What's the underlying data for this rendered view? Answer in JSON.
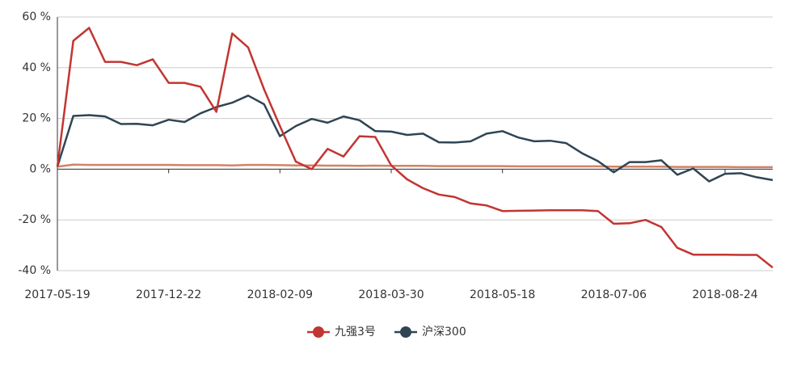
{
  "chart_data": {
    "type": "line",
    "categories": [
      "2017-05-19",
      null,
      null,
      null,
      null,
      null,
      null,
      "2017-12-22",
      null,
      null,
      null,
      null,
      null,
      null,
      "2018-02-09",
      null,
      null,
      null,
      null,
      null,
      null,
      "2018-03-30",
      null,
      null,
      null,
      null,
      null,
      null,
      "2018-05-18",
      null,
      null,
      null,
      null,
      null,
      null,
      "2018-07-06",
      null,
      null,
      null,
      null,
      null,
      null,
      "2018-08-24",
      null,
      null,
      null
    ],
    "series": [
      {
        "name": "九强3号",
        "color": "#c23531",
        "values": [
          1,
          50.6,
          55.7,
          42.3,
          42.3,
          41,
          43.3,
          34,
          34,
          32.5,
          22.6,
          53.5,
          48,
          31.5,
          17,
          3,
          0,
          8,
          5,
          13,
          12.7,
          1.5,
          -4,
          -7.5,
          -10,
          -11,
          -13.5,
          -14.3,
          -16.5,
          -16.4,
          -16.3,
          -16.2,
          -16.2,
          -16.2,
          -16.5,
          -21.5,
          -21.3,
          -20,
          -22.8,
          -31,
          -33.7,
          -33.7,
          -33.7,
          -33.8,
          -33.8,
          -38.8
        ]
      },
      {
        "name": "沪深300",
        "color": "#2f4554",
        "values": [
          1,
          21,
          21.3,
          20.8,
          17.8,
          17.9,
          17.3,
          19.5,
          18.6,
          22,
          24.5,
          26.2,
          29,
          25.6,
          13,
          17,
          19.8,
          18.3,
          20.8,
          19.3,
          15,
          14.8,
          13.5,
          14,
          10.6,
          10.5,
          11,
          14,
          15,
          12.5,
          11,
          11.2,
          10.3,
          6.3,
          3.2,
          -1.2,
          2.8,
          2.8,
          3.5,
          -2.2,
          0.3,
          -4.8,
          -1.8,
          -1.6,
          -3.2,
          -4.3
        ]
      },
      {
        "color": "#d48265",
        "values": [
          1,
          1.8,
          1.7,
          1.7,
          1.7,
          1.7,
          1.7,
          1.7,
          1.6,
          1.6,
          1.6,
          1.5,
          1.7,
          1.7,
          1.6,
          1.5,
          1.5,
          1.4,
          1.4,
          1.3,
          1.4,
          1.3,
          1.3,
          1.3,
          1.2,
          1.2,
          1.2,
          1.2,
          1.2,
          1.1,
          1.1,
          1.1,
          1.1,
          1.1,
          1.1,
          1.0,
          1.0,
          1.0,
          1.0,
          0.9,
          0.9,
          0.9,
          0.9,
          0.8,
          0.8,
          0.8
        ]
      }
    ],
    "ylim": [
      -40,
      60
    ],
    "yticks": [
      {
        "value": -40,
        "label": "-40 %"
      },
      {
        "value": -20,
        "label": "-20 %"
      },
      {
        "value": 0,
        "label": "0 %"
      },
      {
        "value": 20,
        "label": "20 %"
      },
      {
        "value": 40,
        "label": "40 %"
      },
      {
        "value": 60,
        "label": "60 %"
      }
    ],
    "grid": true,
    "legend": "bottom"
  }
}
